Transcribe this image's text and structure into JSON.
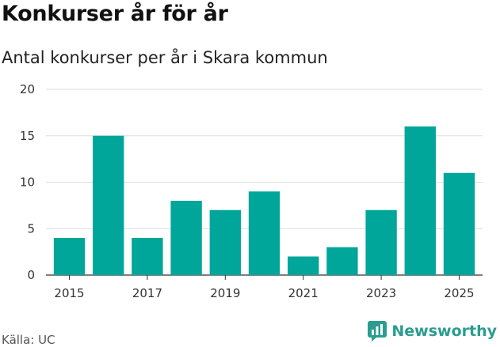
{
  "title": "Konkurser år för år",
  "subtitle": "Antal konkurser per år i Skara kommun",
  "source": "Källa: UC",
  "brand": {
    "name": "Newsworthy",
    "icon": "newsworthy-logo-icon",
    "color": "#2a9d8f"
  },
  "chart_data": {
    "type": "bar",
    "x": [
      2015,
      2016,
      2017,
      2018,
      2019,
      2020,
      2021,
      2022,
      2023,
      2024,
      2025
    ],
    "values": [
      4,
      15,
      4,
      8,
      7,
      9,
      2,
      3,
      7,
      16,
      11
    ],
    "x_tick_labels": [
      "2015",
      "2017",
      "2019",
      "2021",
      "2023",
      "2025"
    ],
    "y_ticks": [
      0,
      5,
      10,
      15,
      20
    ],
    "ylim": [
      0,
      20
    ],
    "xlabel": "",
    "ylabel": "",
    "bar_color": "#00a699",
    "grid": true
  }
}
